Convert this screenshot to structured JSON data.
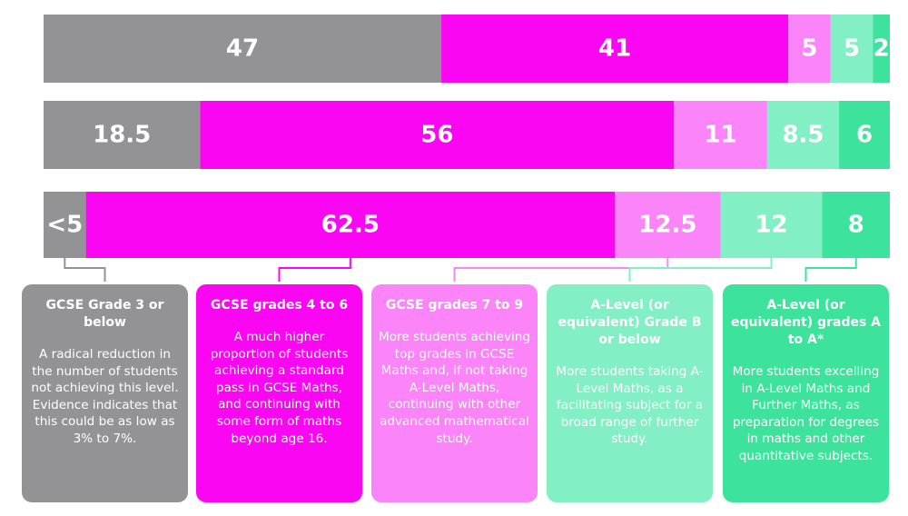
{
  "colors": {
    "grade3_or_below": "#939396",
    "gcse_4_to_6": "#fb06f3",
    "gcse_7_to_9": "#fb84f9",
    "alevel_b_or_below": "#82efc4",
    "alevel_a_to_astar": "#3de39c"
  },
  "chart_data": {
    "type": "bar",
    "orientation": "horizontal",
    "stacked": "100%",
    "categories": [
      "",
      "",
      ""
    ],
    "series": [
      {
        "key": "grade3_or_below",
        "name": "GCSE Grade 3 or below",
        "values": [
          47,
          18.5,
          5
        ],
        "labels": [
          "47",
          "18.5",
          "<5"
        ]
      },
      {
        "key": "gcse_4_to_6",
        "name": "GCSE grades 4 to 6",
        "values": [
          41,
          56,
          62.5
        ],
        "labels": [
          "41",
          "56",
          "62.5"
        ]
      },
      {
        "key": "gcse_7_to_9",
        "name": "GCSE grades 7 to 9",
        "values": [
          5,
          11,
          12.5
        ],
        "labels": [
          "5",
          "11",
          "12.5"
        ]
      },
      {
        "key": "alevel_b_or_below",
        "name": "A-Level (or equivalent) Grade B or below",
        "values": [
          5,
          8.5,
          12
        ],
        "labels": [
          "5",
          "8.5",
          "12"
        ]
      },
      {
        "key": "alevel_a_to_astar",
        "name": "A-Level (or equivalent) grades A to A*",
        "values": [
          2,
          6,
          8
        ],
        "labels": [
          "2",
          "6",
          "8"
        ]
      }
    ],
    "xlim": [
      0,
      100
    ],
    "grid": false,
    "legend": "bottom (description cards)"
  },
  "legend_cards": [
    {
      "key": "grade3_or_below",
      "title": "GCSE Grade 3 or below",
      "body": "A radical reduction in the number of students not achieving this level. Evidence indicates that this could be as low as 3% to 7%."
    },
    {
      "key": "gcse_4_to_6",
      "title": "GCSE grades 4 to 6",
      "body": "A much higher proportion of students achieving a standard pass in GCSE Maths, and continuing with some form of maths beyond age 16."
    },
    {
      "key": "gcse_7_to_9",
      "title": "GCSE grades 7 to 9",
      "body": "More students achieving top grades in GCSE Maths and, if not taking A-Level Maths, continuing with other advanced mathematical study."
    },
    {
      "key": "alevel_b_or_below",
      "title": "A-Level (or equivalent) Grade B or below",
      "body": "More students taking A-Level Maths, as a facilitating subject for a broad range of further study."
    },
    {
      "key": "alevel_a_to_astar",
      "title": "A-Level (or equivalent) grades A to A*",
      "body": "More students excelling in A-Level Maths and Further Maths, as preparation for degrees in maths and other quantitative subjects."
    }
  ]
}
